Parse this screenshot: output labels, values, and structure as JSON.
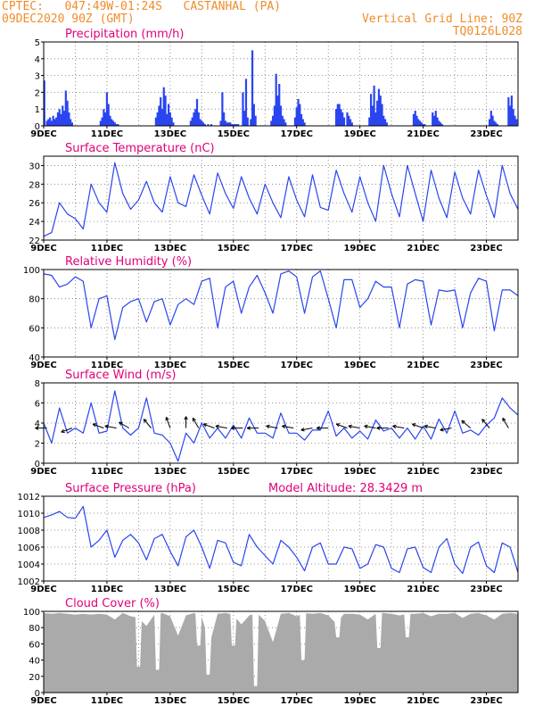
{
  "header": {
    "location": "CPTEC:   047:49W-01:24S   CASTANHAL (PA)",
    "run": "09DEC2020 90Z (GMT)",
    "grid_note": "Vertical Grid Line: 90Z",
    "code": "TQ0126L028"
  },
  "colors": {
    "header": "#f08c2c",
    "title": "#e0007a",
    "series": "#2a45f0",
    "cloud": "#aaaaaa",
    "arrows": "#000000"
  },
  "chart_data": [
    {
      "type": "bar",
      "title": "Precipitation (mm/h)",
      "ylim": [
        0,
        5
      ],
      "yticks": [
        "0",
        "1",
        "2",
        "3",
        "4",
        "5"
      ],
      "xticks": [
        "9DEC",
        "11DEC",
        "13DEC",
        "15DEC",
        "17DEC",
        "19DEC",
        "21DEC",
        "23DEC"
      ],
      "xlim_days": [
        0,
        15
      ],
      "grid": true,
      "x_days": [
        0.02,
        0.1,
        0.15,
        0.2,
        0.25,
        0.3,
        0.35,
        0.4,
        0.45,
        0.5,
        0.55,
        0.6,
        0.65,
        0.7,
        0.75,
        0.8,
        0.85,
        0.9,
        1.8,
        1.85,
        1.9,
        1.95,
        2.0,
        2.05,
        2.1,
        2.15,
        2.2,
        2.25,
        2.3,
        2.35,
        3.55,
        3.6,
        3.65,
        3.7,
        3.75,
        3.8,
        3.85,
        3.9,
        3.95,
        4.0,
        4.05,
        4.1,
        4.65,
        4.7,
        4.75,
        4.8,
        4.85,
        4.9,
        4.95,
        5.0,
        5.05,
        5.1,
        5.2,
        5.3,
        5.6,
        5.65,
        5.7,
        5.75,
        5.8,
        5.85,
        5.9,
        5.95,
        6.0,
        6.05,
        6.1,
        6.15,
        6.3,
        6.35,
        6.4,
        6.45,
        6.55,
        6.6,
        6.65,
        6.7,
        7.2,
        7.25,
        7.3,
        7.35,
        7.4,
        7.45,
        7.5,
        7.55,
        7.6,
        7.65,
        7.95,
        8.0,
        8.05,
        8.1,
        8.15,
        8.2,
        8.25,
        9.25,
        9.3,
        9.35,
        9.4,
        9.45,
        9.5,
        9.6,
        9.65,
        9.7,
        9.75,
        10.3,
        10.35,
        10.4,
        10.45,
        10.5,
        10.55,
        10.6,
        10.65,
        10.7,
        10.75,
        10.8,
        10.85,
        11.7,
        11.75,
        11.8,
        11.85,
        11.9,
        11.95,
        12.0,
        12.05,
        12.3,
        12.35,
        12.4,
        12.45,
        12.5,
        12.55,
        12.6,
        14.1,
        14.15,
        14.2,
        14.25,
        14.3,
        14.35,
        14.7,
        14.75,
        14.8,
        14.85,
        14.9,
        14.95
      ],
      "values": [
        2.7,
        0.3,
        0.4,
        0.5,
        0.3,
        0.6,
        0.4,
        0.5,
        0.8,
        1.0,
        0.7,
        1.2,
        0.9,
        2.1,
        1.5,
        0.8,
        0.4,
        0.2,
        0.3,
        0.5,
        1.0,
        0.8,
        2.0,
        1.3,
        0.6,
        0.4,
        0.3,
        0.2,
        0.1,
        0.1,
        0.5,
        0.8,
        1.2,
        1.7,
        1.0,
        2.3,
        1.8,
        0.7,
        1.3,
        0.8,
        0.5,
        0.2,
        0.3,
        0.5,
        0.8,
        1.0,
        1.6,
        0.8,
        0.4,
        0.3,
        0.2,
        0.1,
        0.1,
        0.1,
        0.3,
        2.0,
        0.8,
        0.3,
        0.2,
        0.2,
        0.2,
        0.1,
        0.1,
        0.1,
        0.1,
        0.1,
        2.0,
        0.9,
        2.8,
        0.5,
        0.4,
        4.5,
        1.3,
        0.6,
        0.3,
        0.6,
        1.2,
        3.1,
        1.8,
        2.5,
        1.2,
        0.6,
        0.4,
        0.2,
        0.5,
        1.1,
        1.6,
        1.3,
        0.7,
        0.4,
        0.2,
        1.0,
        1.3,
        1.3,
        1.0,
        0.8,
        0.5,
        0.8,
        0.6,
        0.4,
        0.2,
        0.5,
        1.9,
        1.2,
        2.4,
        0.8,
        1.5,
        2.2,
        1.8,
        1.3,
        0.6,
        0.4,
        0.2,
        0.7,
        0.9,
        0.6,
        0.4,
        0.3,
        0.2,
        0.1,
        0.1,
        0.8,
        0.6,
        0.9,
        0.5,
        0.3,
        0.2,
        0.1,
        0.4,
        0.9,
        0.6,
        0.3,
        0.2,
        0.1,
        1.7,
        1.2,
        1.8,
        1.0,
        0.6,
        0.4
      ]
    },
    {
      "type": "line",
      "title": "Surface Temperature (nC)",
      "ylim": [
        22,
        31
      ],
      "yticks": [
        "22",
        "24",
        "26",
        "28",
        "30"
      ],
      "xticks": [
        "9DEC",
        "11DEC",
        "13DEC",
        "15DEC",
        "17DEC",
        "19DEC",
        "21DEC",
        "23DEC"
      ],
      "xlim_days": [
        0,
        15
      ],
      "grid": true,
      "x_days": [
        0,
        0.25,
        0.5,
        0.75,
        1,
        1.25,
        1.5,
        1.75,
        2,
        2.25,
        2.5,
        2.75,
        3,
        3.25,
        3.5,
        3.75,
        4,
        4.25,
        4.5,
        4.75,
        5,
        5.25,
        5.5,
        5.75,
        6,
        6.25,
        6.5,
        6.75,
        7,
        7.25,
        7.5,
        7.75,
        8,
        8.25,
        8.5,
        8.75,
        9,
        9.25,
        9.5,
        9.75,
        10,
        10.25,
        10.5,
        10.75,
        11,
        11.25,
        11.5,
        11.75,
        12,
        12.25,
        12.5,
        12.75,
        13,
        13.25,
        13.5,
        13.75,
        14,
        14.25,
        14.5,
        14.75,
        15
      ],
      "values": [
        22.4,
        22.8,
        26.0,
        24.8,
        24.3,
        23.2,
        28.0,
        26.0,
        25.0,
        30.3,
        27.0,
        25.3,
        26.3,
        28.3,
        26.0,
        25.0,
        28.8,
        26.0,
        25.6,
        29.0,
        26.8,
        24.8,
        29.2,
        27.0,
        25.4,
        28.8,
        26.5,
        24.8,
        28.0,
        26.0,
        24.4,
        28.8,
        26.3,
        24.5,
        29.0,
        25.5,
        25.2,
        29.5,
        27.0,
        25.0,
        28.8,
        26.0,
        24.0,
        30.0,
        27.0,
        24.5,
        30.0,
        27.0,
        24.0,
        29.5,
        26.5,
        24.4,
        29.3,
        26.5,
        24.8,
        29.5,
        26.8,
        24.4,
        30.0,
        27.0,
        25.3
      ]
    },
    {
      "type": "line",
      "title": "Relative Humidity (%)",
      "ylim": [
        40,
        100
      ],
      "yticks": [
        "40",
        "60",
        "80",
        "100"
      ],
      "xticks": [
        "9DEC",
        "11DEC",
        "13DEC",
        "15DEC",
        "17DEC",
        "19DEC",
        "21DEC",
        "23DEC"
      ],
      "xlim_days": [
        0,
        15
      ],
      "grid": true,
      "x_days": [
        0,
        0.25,
        0.5,
        0.75,
        1,
        1.25,
        1.5,
        1.75,
        2,
        2.25,
        2.5,
        2.75,
        3,
        3.25,
        3.5,
        3.75,
        4,
        4.25,
        4.5,
        4.75,
        5,
        5.25,
        5.5,
        5.75,
        6,
        6.25,
        6.5,
        6.75,
        7,
        7.25,
        7.5,
        7.75,
        8,
        8.25,
        8.5,
        8.75,
        9,
        9.25,
        9.5,
        9.75,
        10,
        10.25,
        10.5,
        10.75,
        11,
        11.25,
        11.5,
        11.75,
        12,
        12.25,
        12.5,
        12.75,
        13,
        13.25,
        13.5,
        13.75,
        14,
        14.25,
        14.5,
        14.75,
        15
      ],
      "values": [
        97,
        96,
        88,
        90,
        95,
        92,
        60,
        80,
        82,
        52,
        74,
        78,
        80,
        64,
        78,
        80,
        62,
        76,
        80,
        76,
        92,
        94,
        60,
        88,
        92,
        70,
        88,
        96,
        84,
        70,
        97,
        99,
        95,
        70,
        95,
        99,
        80,
        60,
        93,
        93,
        74,
        80,
        92,
        88,
        88,
        60,
        90,
        93,
        92,
        62,
        86,
        85,
        86,
        60,
        84,
        94,
        92,
        58,
        86,
        86,
        82
      ]
    },
    {
      "type": "line",
      "title": "Surface Wind (m/s)",
      "ylim": [
        0,
        8
      ],
      "yticks": [
        "0",
        "2",
        "4",
        "6",
        "8"
      ],
      "xticks": [
        "9DEC",
        "11DEC",
        "13DEC",
        "15DEC",
        "17DEC",
        "19DEC",
        "21DEC",
        "23DEC"
      ],
      "xlim_days": [
        0,
        15
      ],
      "grid": true,
      "x_days": [
        0,
        0.25,
        0.5,
        0.75,
        1,
        1.25,
        1.5,
        1.75,
        2,
        2.25,
        2.5,
        2.75,
        3,
        3.25,
        3.5,
        3.75,
        4,
        4.25,
        4.5,
        4.75,
        5,
        5.25,
        5.5,
        5.75,
        6,
        6.25,
        6.5,
        6.75,
        7,
        7.25,
        7.5,
        7.75,
        8,
        8.25,
        8.5,
        8.75,
        9,
        9.25,
        9.5,
        9.75,
        10,
        10.25,
        10.5,
        10.75,
        11,
        11.25,
        11.5,
        11.75,
        12,
        12.25,
        12.5,
        12.75,
        13,
        13.25,
        13.5,
        13.75,
        14,
        14.25,
        14.5,
        14.75,
        15
      ],
      "values": [
        4.0,
        2.0,
        5.5,
        3.0,
        3.5,
        3.0,
        6.0,
        3.0,
        3.2,
        7.2,
        3.5,
        2.8,
        3.5,
        6.5,
        3.0,
        2.8,
        2.0,
        0.2,
        3.0,
        2.0,
        4.0,
        2.5,
        3.5,
        2.5,
        3.8,
        2.5,
        4.5,
        3.0,
        3.0,
        2.5,
        5.0,
        3.0,
        3.0,
        2.3,
        3.3,
        3.3,
        5.2,
        2.7,
        3.5,
        2.5,
        3.2,
        2.4,
        4.3,
        3.2,
        3.5,
        2.5,
        3.5,
        2.4,
        3.7,
        2.4,
        4.4,
        3.0,
        5.2,
        3.0,
        3.3,
        2.8,
        3.8,
        4.5,
        6.5,
        5.5,
        4.8
      ],
      "wind_arrow_days": [
        0.1,
        0.9,
        1.9,
        2.3,
        2.7,
        3.4,
        4.0,
        4.5,
        4.9,
        5.4,
        5.8,
        6.3,
        6.8,
        7.4,
        7.9,
        8.5,
        9.0,
        9.6,
        10.0,
        10.5,
        10.9,
        11.4,
        12.0,
        12.4,
        12.9,
        13.5,
        14.1,
        14.7
      ],
      "wind_arrow_dirs_deg": [
        180,
        160,
        200,
        190,
        210,
        230,
        250,
        270,
        240,
        200,
        190,
        180,
        180,
        190,
        190,
        170,
        180,
        200,
        190,
        190,
        180,
        190,
        200,
        190,
        170,
        220,
        230,
        240
      ]
    },
    {
      "type": "line",
      "title": "Surface Pressure (hPa)",
      "annotation": "Model Altitude: 28.3429 m",
      "ylim": [
        1002,
        1012
      ],
      "yticks": [
        "1002",
        "1004",
        "1006",
        "1008",
        "1010",
        "1012"
      ],
      "xticks": [
        "9DEC",
        "11DEC",
        "13DEC",
        "15DEC",
        "17DEC",
        "19DEC",
        "21DEC",
        "23DEC"
      ],
      "xlim_days": [
        0,
        15
      ],
      "grid": true,
      "x_days": [
        0,
        0.25,
        0.5,
        0.75,
        1,
        1.25,
        1.5,
        1.75,
        2,
        2.25,
        2.5,
        2.75,
        3,
        3.25,
        3.5,
        3.75,
        4,
        4.25,
        4.5,
        4.75,
        5,
        5.25,
        5.5,
        5.75,
        6,
        6.25,
        6.5,
        6.75,
        7,
        7.25,
        7.5,
        7.75,
        8,
        8.25,
        8.5,
        8.75,
        9,
        9.25,
        9.5,
        9.75,
        10,
        10.25,
        10.5,
        10.75,
        11,
        11.25,
        11.5,
        11.75,
        12,
        12.25,
        12.5,
        12.75,
        13,
        13.25,
        13.5,
        13.75,
        14,
        14.25,
        14.5,
        14.75,
        15
      ],
      "values": [
        1009.5,
        1009.8,
        1010.2,
        1009.5,
        1009.4,
        1010.8,
        1006.0,
        1006.8,
        1008.0,
        1004.8,
        1006.8,
        1007.5,
        1006.5,
        1004.5,
        1007.0,
        1007.5,
        1005.5,
        1003.8,
        1007.2,
        1008.0,
        1006.0,
        1003.5,
        1006.8,
        1006.5,
        1004.2,
        1003.8,
        1007.5,
        1006.0,
        1005.0,
        1004.0,
        1006.8,
        1006.0,
        1004.8,
        1003.2,
        1006.0,
        1006.5,
        1004.0,
        1004.0,
        1006.0,
        1005.8,
        1003.5,
        1004.0,
        1006.3,
        1006.0,
        1003.5,
        1003.0,
        1005.8,
        1006.0,
        1003.6,
        1003.0,
        1006.0,
        1007.0,
        1004.0,
        1002.9,
        1006.0,
        1006.6,
        1003.8,
        1003.0,
        1006.5,
        1006.0,
        1003.0
      ]
    },
    {
      "type": "area",
      "title": "Cloud Cover (%)",
      "ylim": [
        0,
        100
      ],
      "yticks": [
        "0",
        "20",
        "40",
        "60",
        "80",
        "100"
      ],
      "xticks": [
        "9DEC",
        "11DEC",
        "13DEC",
        "15DEC",
        "17DEC",
        "19DEC",
        "21DEC",
        "23DEC"
      ],
      "xlim_days": [
        0,
        15
      ],
      "grid": true,
      "x_days": [
        0,
        0.25,
        0.5,
        0.75,
        1,
        1.25,
        1.5,
        1.75,
        2,
        2.25,
        2.5,
        2.75,
        3,
        3.25,
        3.5,
        3.75,
        4,
        4.25,
        4.5,
        4.75,
        5,
        5.25,
        5.5,
        5.75,
        6,
        6.25,
        6.5,
        6.75,
        7,
        7.25,
        7.5,
        7.75,
        8,
        8.25,
        8.5,
        8.75,
        9,
        9.25,
        9.5,
        9.75,
        10,
        10.25,
        10.5,
        10.75,
        11,
        11.25,
        11.5,
        11.75,
        12,
        12.25,
        12.5,
        12.75,
        13,
        13.25,
        13.5,
        13.75,
        14,
        14.25,
        14.5,
        14.75,
        15
      ],
      "values": [
        98,
        97,
        98,
        97,
        96,
        97,
        96,
        97,
        96,
        90,
        98,
        94,
        92,
        82,
        96,
        98,
        94,
        70,
        95,
        98,
        93,
        60,
        97,
        98,
        96,
        84,
        95,
        98,
        88,
        62,
        97,
        98,
        94,
        98,
        97,
        98,
        95,
        85,
        97,
        97,
        96,
        90,
        97,
        98,
        97,
        95,
        97,
        97,
        98,
        94,
        97,
        97,
        98,
        92,
        97,
        98,
        95,
        90,
        97,
        98,
        97
      ],
      "dips_days": [
        3.0,
        3.6,
        4.9,
        5.2,
        6.0,
        6.7,
        8.2,
        9.3,
        10.6,
        11.5
      ],
      "dips_values": [
        32,
        28,
        58,
        22,
        58,
        8,
        40,
        68,
        55,
        68
      ]
    }
  ]
}
